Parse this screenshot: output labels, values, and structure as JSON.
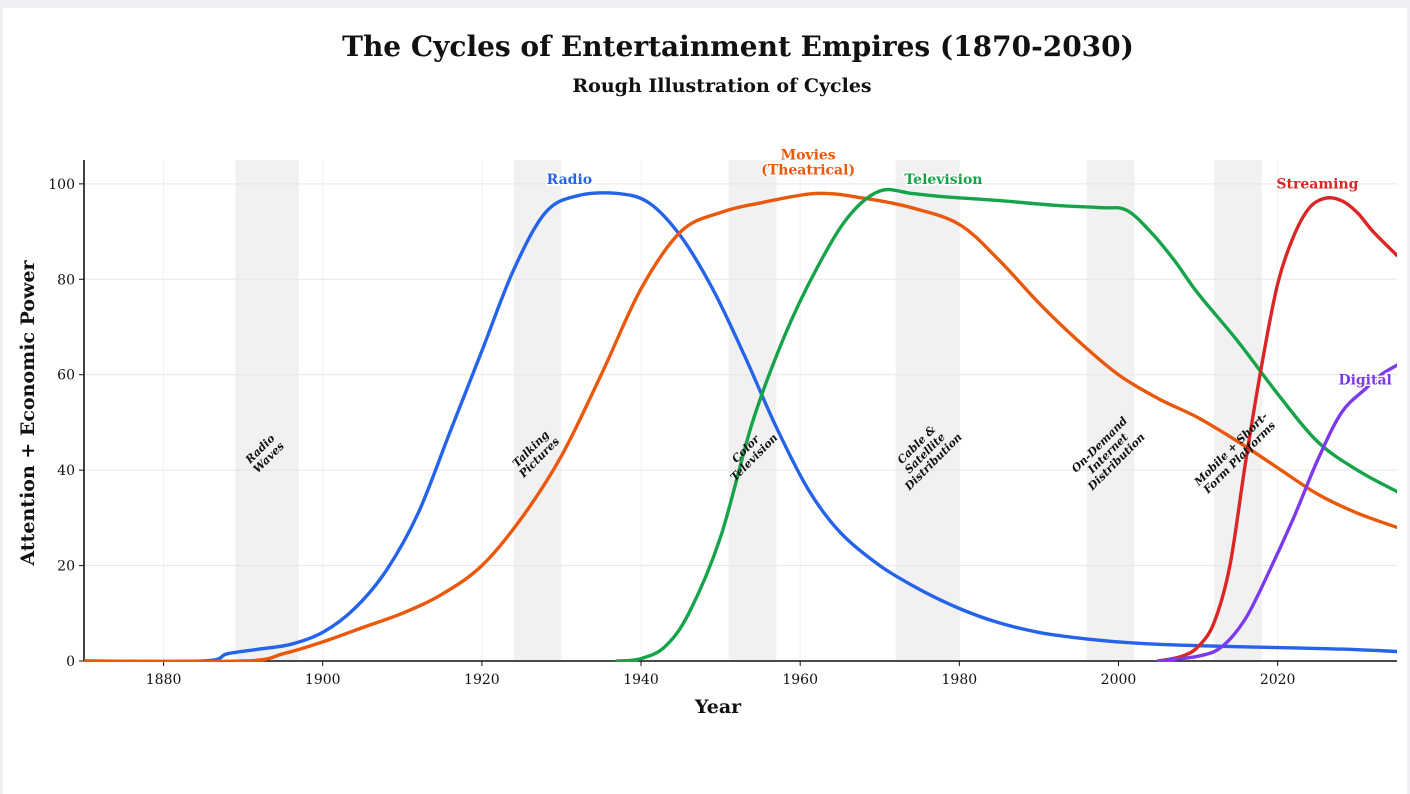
{
  "chart_data": {
    "type": "line",
    "title": "The Cycles of Entertainment Empires (1870-2030)",
    "subtitle": "Rough Illustration of Cycles",
    "xlabel": "Year",
    "ylabel": "Attention + Economic Power",
    "xlim": [
      1870,
      2035
    ],
    "ylim": [
      0,
      105
    ],
    "xticks": [
      1880,
      1900,
      1920,
      1940,
      1960,
      1980,
      2000,
      2020
    ],
    "yticks": [
      0,
      20,
      40,
      60,
      80,
      100
    ],
    "grid": true,
    "series": [
      {
        "name": "Radio",
        "color": "#2563eb",
        "label_at": [
          1931,
          100
        ],
        "points": [
          [
            1870,
            0
          ],
          [
            1885,
            0
          ],
          [
            1888,
            1.5
          ],
          [
            1892,
            2.5
          ],
          [
            1896,
            3.5
          ],
          [
            1900,
            6
          ],
          [
            1904,
            11
          ],
          [
            1908,
            19
          ],
          [
            1912,
            31
          ],
          [
            1916,
            48
          ],
          [
            1920,
            65
          ],
          [
            1924,
            82
          ],
          [
            1928,
            94
          ],
          [
            1932,
            97.5
          ],
          [
            1937,
            98
          ],
          [
            1941,
            96
          ],
          [
            1945,
            89
          ],
          [
            1949,
            78
          ],
          [
            1953,
            64
          ],
          [
            1957,
            49
          ],
          [
            1961,
            36
          ],
          [
            1965,
            27
          ],
          [
            1970,
            20
          ],
          [
            1975,
            15
          ],
          [
            1980,
            11
          ],
          [
            1985,
            8
          ],
          [
            1990,
            6
          ],
          [
            1995,
            4.8
          ],
          [
            2000,
            4
          ],
          [
            2005,
            3.5
          ],
          [
            2010,
            3.2
          ],
          [
            2020,
            2.8
          ],
          [
            2028,
            2.5
          ],
          [
            2035,
            2
          ]
        ]
      },
      {
        "name": "Movies\n(Theatrical)",
        "color": "#ea580c",
        "label_at": [
          1961,
          102
        ],
        "points": [
          [
            1870,
            0
          ],
          [
            1890,
            0
          ],
          [
            1895,
            1.5
          ],
          [
            1900,
            4
          ],
          [
            1905,
            7
          ],
          [
            1910,
            10
          ],
          [
            1915,
            14
          ],
          [
            1920,
            20
          ],
          [
            1925,
            30
          ],
          [
            1930,
            43
          ],
          [
            1935,
            60
          ],
          [
            1940,
            78
          ],
          [
            1945,
            90
          ],
          [
            1950,
            94
          ],
          [
            1955,
            96
          ],
          [
            1962,
            98
          ],
          [
            1968,
            97
          ],
          [
            1974,
            95
          ],
          [
            1980,
            91.5
          ],
          [
            1985,
            84
          ],
          [
            1990,
            75
          ],
          [
            1995,
            67
          ],
          [
            2000,
            60
          ],
          [
            2005,
            55
          ],
          [
            2010,
            51
          ],
          [
            2015,
            46
          ],
          [
            2020,
            40.5
          ],
          [
            2025,
            35
          ],
          [
            2030,
            31
          ],
          [
            2035,
            28
          ]
        ]
      },
      {
        "name": "Television",
        "color": "#16a34a",
        "label_at": [
          1978,
          100
        ],
        "points": [
          [
            1937,
            0
          ],
          [
            1940,
            0.5
          ],
          [
            1943,
            3
          ],
          [
            1946,
            10
          ],
          [
            1950,
            26
          ],
          [
            1954,
            50
          ],
          [
            1958,
            68
          ],
          [
            1962,
            82
          ],
          [
            1966,
            93
          ],
          [
            1970,
            98.5
          ],
          [
            1974,
            98
          ],
          [
            1978,
            97.3
          ],
          [
            1985,
            96.5
          ],
          [
            1992,
            95.5
          ],
          [
            1998,
            95
          ],
          [
            2001,
            94.5
          ],
          [
            2004,
            90
          ],
          [
            2007,
            84
          ],
          [
            2010,
            77
          ],
          [
            2015,
            67
          ],
          [
            2020,
            56
          ],
          [
            2025,
            46
          ],
          [
            2030,
            40
          ],
          [
            2035,
            35.5
          ]
        ]
      },
      {
        "name": "Streaming",
        "color": "#dc2626",
        "label_at": [
          2025,
          99
        ],
        "points": [
          [
            2005,
            0
          ],
          [
            2008,
            1
          ],
          [
            2010,
            3
          ],
          [
            2012,
            8
          ],
          [
            2014,
            20
          ],
          [
            2016,
            42
          ],
          [
            2018,
            62
          ],
          [
            2020,
            79
          ],
          [
            2022,
            89
          ],
          [
            2024,
            95
          ],
          [
            2026,
            97
          ],
          [
            2028,
            96.5
          ],
          [
            2030,
            94
          ],
          [
            2032,
            90
          ],
          [
            2035,
            85
          ]
        ]
      },
      {
        "name": "Digital",
        "color": "#7c3aed",
        "label_at": [
          2031,
          58
        ],
        "points": [
          [
            2005,
            0
          ],
          [
            2010,
            1
          ],
          [
            2013,
            3
          ],
          [
            2016,
            9
          ],
          [
            2019,
            19
          ],
          [
            2022,
            30
          ],
          [
            2025,
            42
          ],
          [
            2028,
            52
          ],
          [
            2031,
            57
          ],
          [
            2033,
            60
          ],
          [
            2035,
            62
          ]
        ]
      }
    ],
    "shaded_eras": [
      {
        "start": 1889,
        "end": 1897,
        "label": "Radio\nWaves"
      },
      {
        "start": 1924,
        "end": 1930,
        "label": "Talking\nPictures"
      },
      {
        "start": 1951,
        "end": 1957,
        "label": "Color\nTelevision"
      },
      {
        "start": 1972,
        "end": 1980,
        "label": "Cable &\nSatellite\nDistribution"
      },
      {
        "start": 1996,
        "end": 2002,
        "label": "On-Demand\nInternet\nDistribution"
      },
      {
        "start": 2012,
        "end": 2018,
        "label": "Mobile + Short-\nForm Platforms"
      }
    ]
  }
}
